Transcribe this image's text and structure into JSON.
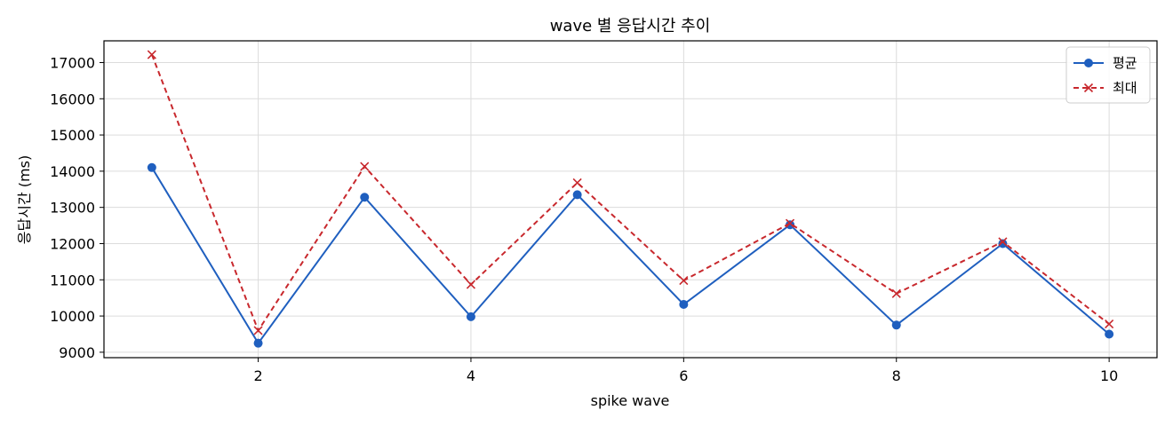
{
  "chart_data": {
    "type": "line",
    "title": "wave 별 응답시간 추이",
    "xlabel": "spike wave",
    "ylabel": "응답시간 (ms)",
    "x": [
      1,
      2,
      3,
      4,
      5,
      6,
      7,
      8,
      9,
      10
    ],
    "xlim": [
      0.55,
      10.45
    ],
    "ylim": [
      8850,
      17600
    ],
    "xticks": [
      2,
      4,
      6,
      8,
      10
    ],
    "yticks": [
      9000,
      10000,
      11000,
      12000,
      13000,
      14000,
      15000,
      16000,
      17000
    ],
    "grid": true,
    "legend_position": "top-right",
    "series": [
      {
        "name": "평균",
        "values": [
          14100,
          9250,
          13280,
          9980,
          13350,
          10320,
          12520,
          9750,
          12000,
          9500
        ],
        "color": "#1f5fbf",
        "style": "solid",
        "marker": "circle"
      },
      {
        "name": "최대",
        "values": [
          17220,
          9600,
          14130,
          10870,
          13680,
          10980,
          12560,
          10620,
          12050,
          9780
        ],
        "color": "#c8282d",
        "style": "dashed",
        "marker": "x"
      }
    ]
  }
}
